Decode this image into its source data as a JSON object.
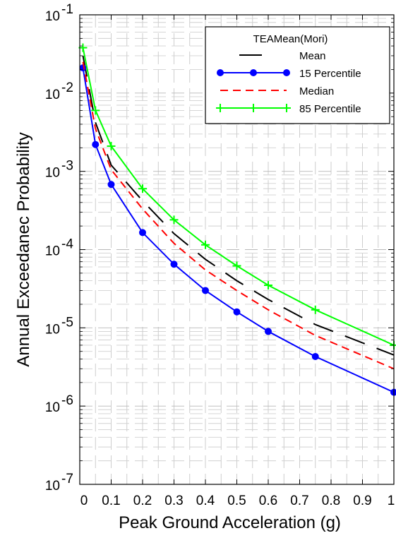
{
  "chart_data": {
    "type": "line",
    "title": "",
    "xlabel": "Peak Ground Acceleration (g)",
    "ylabel": "Annual Exceedanec Probability",
    "xlim": [
      0,
      1
    ],
    "ylim": [
      1e-07,
      0.1
    ],
    "y_scale": "log",
    "grid": true,
    "legend_placement": "top-right",
    "legend_title": "TEAMean(Mori)",
    "x_ticks": [
      {
        "value": 0.1,
        "label": "0.1"
      },
      {
        "value": 0.2,
        "label": "0.2"
      },
      {
        "value": 0.3,
        "label": "0.3"
      },
      {
        "value": 0.4,
        "label": "0.4"
      },
      {
        "value": 0.5,
        "label": "0.5"
      },
      {
        "value": 0.6,
        "label": "0.6"
      },
      {
        "value": 0.7,
        "label": "0.7"
      },
      {
        "value": 0.8,
        "label": "0.8"
      },
      {
        "value": 0.9,
        "label": "0.9"
      },
      {
        "value": 1.0,
        "label": "1"
      }
    ],
    "x_origin_label": "0",
    "y_ticks": [
      {
        "value": 1e-07,
        "base": "10",
        "exp": "-7"
      },
      {
        "value": 1e-06,
        "base": "10",
        "exp": "-6"
      },
      {
        "value": 1e-05,
        "base": "10",
        "exp": "-5"
      },
      {
        "value": 0.0001,
        "base": "10",
        "exp": "-4"
      },
      {
        "value": 0.001,
        "base": "10",
        "exp": "-3"
      },
      {
        "value": 0.01,
        "base": "10",
        "exp": "-2"
      },
      {
        "value": 0.1,
        "base": "10",
        "exp": "-1"
      }
    ],
    "series": [
      {
        "name": "Mean",
        "color": "#000000",
        "style": "long-dash",
        "marker": "none",
        "x": [
          0.01,
          0.05,
          0.1,
          0.2,
          0.3,
          0.4,
          0.5,
          0.6,
          0.75,
          1.0
        ],
        "y": [
          0.03,
          0.0042,
          0.0012,
          0.00042,
          0.00016,
          7.5e-05,
          4e-05,
          2.3e-05,
          1.1e-05,
          4.5e-06
        ]
      },
      {
        "name": "15 Percentile",
        "color": "#0000ff",
        "style": "solid",
        "marker": "circle",
        "x": [
          0.01,
          0.05,
          0.1,
          0.2,
          0.3,
          0.4,
          0.5,
          0.6,
          0.75,
          1.0
        ],
        "y": [
          0.021,
          0.0022,
          0.00068,
          0.000165,
          6.5e-05,
          3e-05,
          1.6e-05,
          9e-06,
          4.3e-06,
          1.5e-06
        ]
      },
      {
        "name": "Median",
        "color": "#ff0000",
        "style": "dash",
        "marker": "none",
        "x": [
          0.01,
          0.05,
          0.1,
          0.2,
          0.3,
          0.4,
          0.5,
          0.6,
          0.75,
          1.0
        ],
        "y": [
          0.025,
          0.0035,
          0.00105,
          0.00033,
          0.00012,
          5.5e-05,
          3e-05,
          1.7e-05,
          8e-06,
          3e-06
        ]
      },
      {
        "name": "85 Percentile",
        "color": "#00ff00",
        "style": "solid",
        "marker": "plus",
        "x": [
          0.01,
          0.05,
          0.1,
          0.2,
          0.3,
          0.4,
          0.5,
          0.6,
          0.75,
          1.0
        ],
        "y": [
          0.038,
          0.006,
          0.0021,
          0.0006,
          0.00024,
          0.000115,
          6.2e-05,
          3.5e-05,
          1.7e-05,
          6e-06
        ]
      }
    ]
  }
}
